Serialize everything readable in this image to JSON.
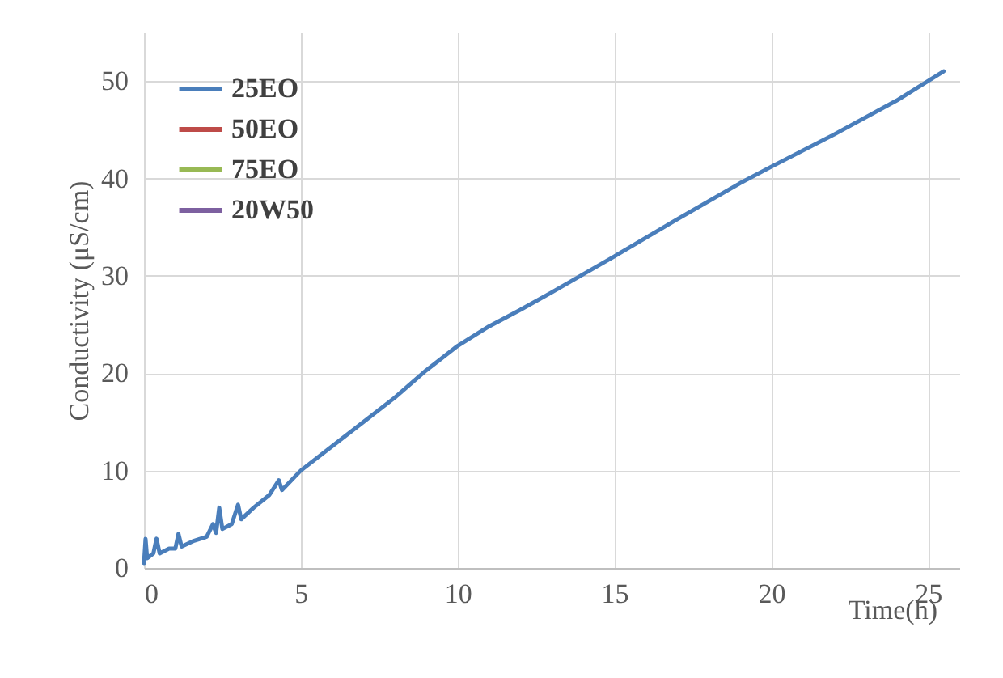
{
  "chart_data": {
    "type": "line",
    "xlabel": "Time(h)",
    "ylabel": "Conductivity (μS/cm)",
    "xlim": [
      0,
      26
    ],
    "xticks": [
      0,
      5,
      10,
      15,
      20,
      25
    ],
    "ylim": [
      0,
      55
    ],
    "yticks": [
      0,
      10,
      20,
      30,
      40,
      50
    ],
    "grid": true,
    "legend": "top left",
    "marker": "none",
    "line_style": "solid",
    "series": [
      {
        "name": "25EO",
        "color": "#4a7ebb",
        "x": [
          0,
          0.05,
          0.1,
          0.3,
          0.4,
          0.5,
          0.8,
          1.0,
          1.1,
          1.2,
          1.6,
          2.0,
          2.2,
          2.3,
          2.4,
          2.5,
          2.8,
          3.0,
          3.1,
          3.5,
          4.0,
          4.3,
          4.4,
          5,
          6,
          7,
          8,
          9,
          10,
          11,
          12,
          13,
          15,
          17,
          19,
          20,
          22,
          24,
          25.5
        ],
        "values": [
          0.5,
          3,
          1,
          1.5,
          3,
          1.5,
          2,
          2,
          3.5,
          2.2,
          2.8,
          3.2,
          4.5,
          3.6,
          6.2,
          4,
          4.5,
          6.5,
          5,
          6.2,
          7.5,
          9,
          8,
          10,
          12.5,
          15,
          17.5,
          20.3,
          22.8,
          24.8,
          26.5,
          28.3,
          32,
          35.8,
          39.5,
          41.2,
          44.5,
          48,
          51
        ]
      },
      {
        "name": "50EO",
        "color": "#be4b48"
      },
      {
        "name": "75EO",
        "color": "#98b954"
      },
      {
        "name": "20W50",
        "color": "#7d60a0"
      }
    ]
  }
}
